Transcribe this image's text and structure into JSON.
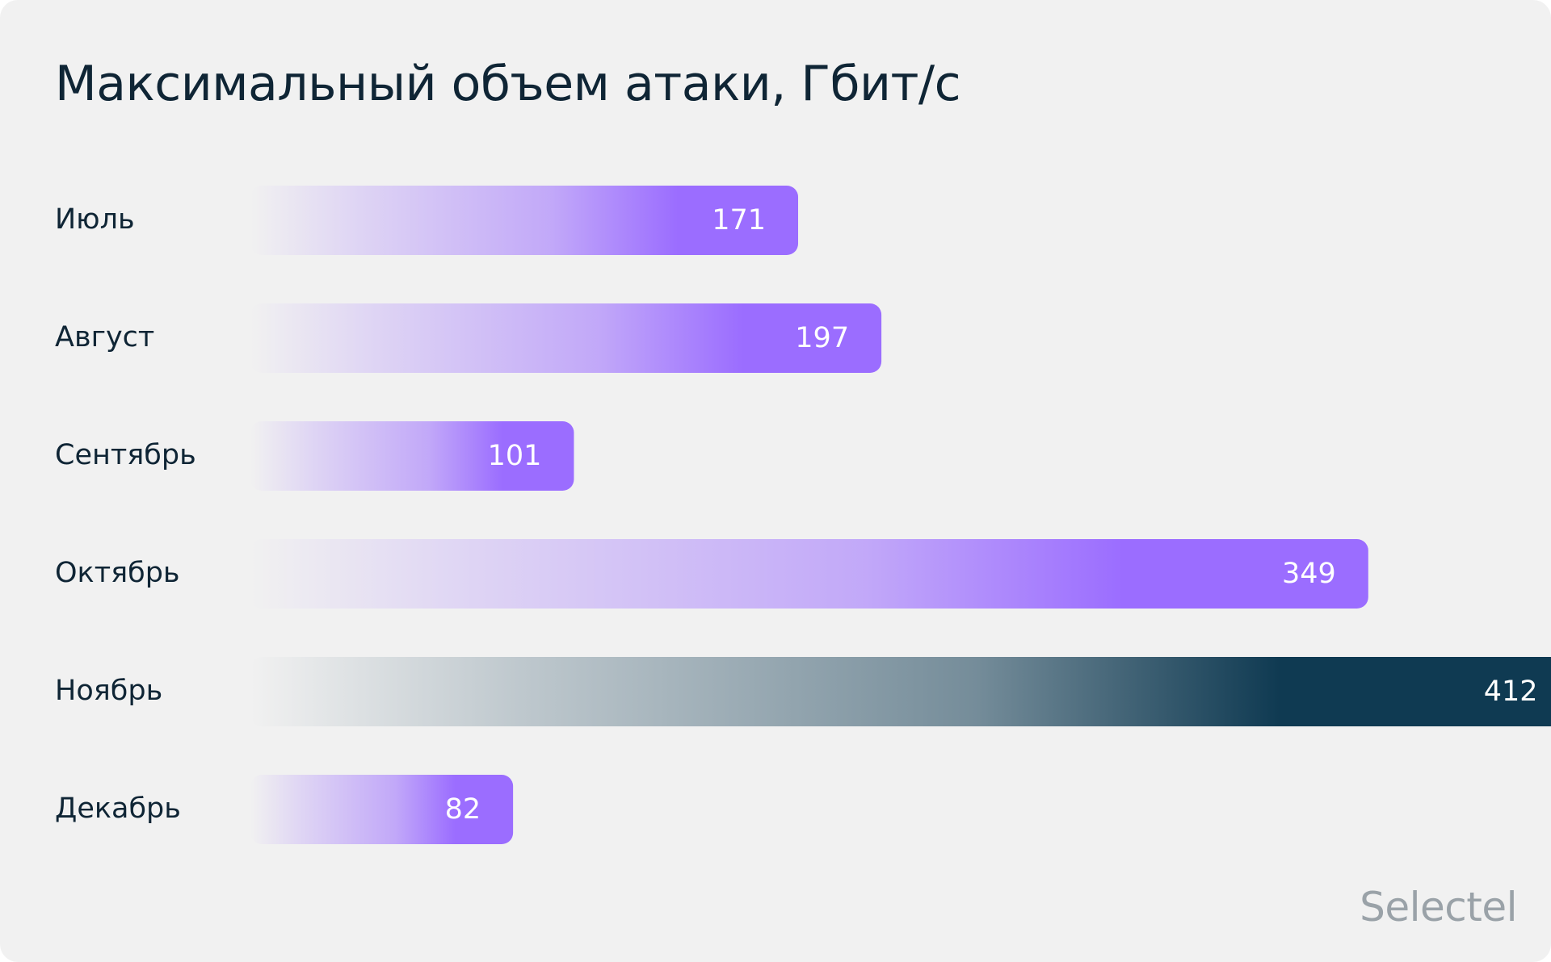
{
  "chart_data": {
    "type": "bar",
    "orientation": "horizontal",
    "title": "Максимальный объем атаки, Гбит/с",
    "xlabel": "",
    "ylabel": "",
    "categories": [
      "Июль",
      "Август",
      "Сентябрь",
      "Октябрь",
      "Ноябрь",
      "Декабрь"
    ],
    "values": [
      171,
      197,
      101,
      349,
      412,
      82
    ],
    "value_labels": [
      "171",
      "197",
      "101",
      "349",
      "412",
      "82"
    ],
    "highlight_index": 4,
    "grid": false,
    "legend": "none",
    "colors": {
      "bar": "#9b6dff",
      "highlight": "#0f3a52",
      "text": "#0f2535",
      "background": "#f1f1f1"
    }
  },
  "brand": {
    "logo_text": "Selectel",
    "logo_color": "#9aa2a8"
  }
}
